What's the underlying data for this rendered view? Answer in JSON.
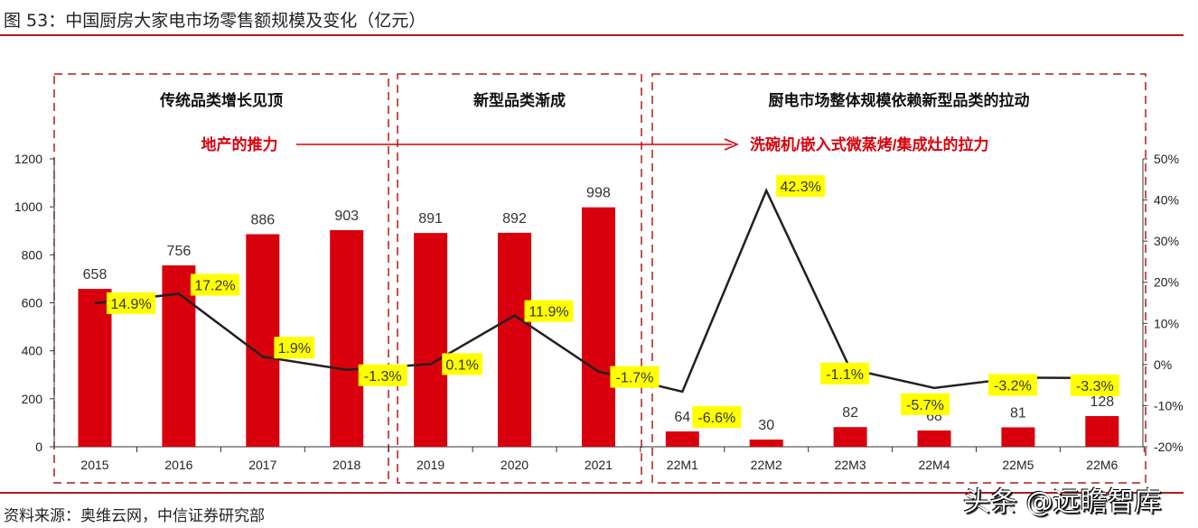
{
  "title": "图 53：中国厨房大家电市场零售额规模及变化（亿元）",
  "source": "资料来源：奥维云网，中信证券研究部",
  "watermark": "头条 @远瞻智库",
  "sections": [
    {
      "label": "传统品类增长见顶"
    },
    {
      "label": "新型品类渐成"
    },
    {
      "label": "厨电市场整体规模依赖新型品类的拉动"
    }
  ],
  "arrow": {
    "left_label": "地产的推力",
    "right_label": "洗碗机/嵌入式微蒸烤/集成灶的拉力"
  },
  "colors": {
    "bar": "#d9000d",
    "line": "#231f20",
    "label_bg": "#ffff00",
    "accent": "#d9000d",
    "box": "#b01c1c"
  },
  "chart_data": {
    "type": "bar+line",
    "categories": [
      "2015",
      "2016",
      "2017",
      "2018",
      "2019",
      "2020",
      "2021",
      "22M1",
      "22M2",
      "22M3",
      "22M4",
      "22M5",
      "22M6"
    ],
    "series": [
      {
        "type": "bar",
        "axis": "left",
        "values": [
          658,
          756,
          886,
          903,
          891,
          892,
          998,
          64,
          30,
          82,
          68,
          81,
          128
        ],
        "labels": [
          "658",
          "756",
          "886",
          "903",
          "891",
          "892",
          "998",
          "64",
          "30",
          "82",
          "68",
          "81",
          "128"
        ]
      },
      {
        "type": "line",
        "axis": "right",
        "values": [
          14.9,
          17.2,
          1.9,
          -1.3,
          0.1,
          11.9,
          -1.7,
          -6.6,
          42.3,
          -1.1,
          -5.7,
          -3.2,
          -3.3
        ],
        "labels": [
          "14.9%",
          "17.2%",
          "1.9%",
          "-1.3%",
          "0.1%",
          "11.9%",
          "-1.7%",
          "-6.6%",
          "42.3%",
          "-1.1%",
          "-5.7%",
          "-3.2%",
          "-3.3%"
        ]
      }
    ],
    "left_axis": {
      "range": [
        0,
        1200
      ],
      "ticks": [
        "0",
        "200",
        "400",
        "600",
        "800",
        "1000",
        "1200"
      ]
    },
    "right_axis": {
      "range": [
        -20,
        50
      ],
      "ticks": [
        "-20%",
        "-10%",
        "0%",
        "10%",
        "20%",
        "30%",
        "40%",
        "50%"
      ]
    },
    "grid": false
  }
}
